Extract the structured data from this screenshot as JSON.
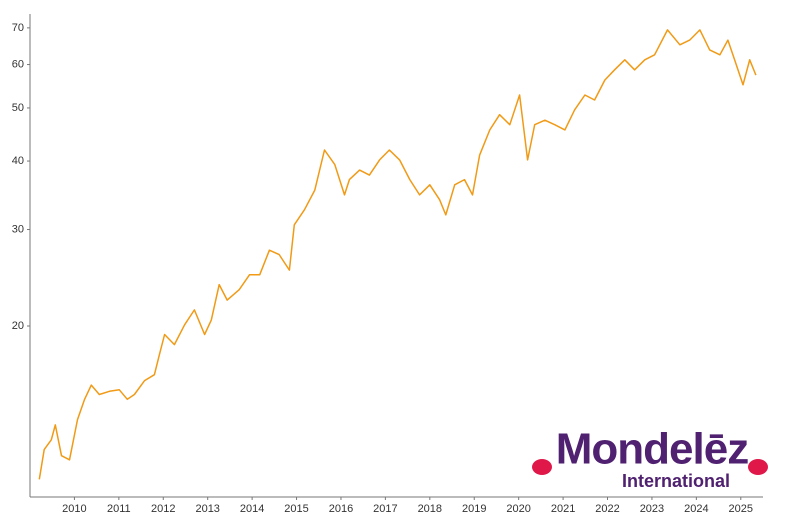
{
  "chart_data": {
    "type": "line",
    "x": [
      2009.21,
      2009.32,
      2009.48,
      2009.57,
      2009.71,
      2009.89,
      2010.07,
      2010.23,
      2010.38,
      2010.56,
      2010.79,
      2011.01,
      2011.19,
      2011.35,
      2011.58,
      2011.8,
      2011.91,
      2012.03,
      2012.25,
      2012.48,
      2012.7,
      2012.93,
      2013.08,
      2013.26,
      2013.44,
      2013.71,
      2013.94,
      2014.17,
      2014.39,
      2014.61,
      2014.84,
      2014.95,
      2015.18,
      2015.41,
      2015.63,
      2015.86,
      2016.08,
      2016.19,
      2016.42,
      2016.64,
      2016.87,
      2017.09,
      2017.32,
      2017.55,
      2017.77,
      2018.0,
      2018.22,
      2018.36,
      2018.56,
      2018.78,
      2018.96,
      2019.12,
      2019.35,
      2019.57,
      2019.8,
      2020.02,
      2020.2,
      2020.36,
      2020.59,
      2020.81,
      2021.04,
      2021.26,
      2021.49,
      2021.71,
      2021.94,
      2022.16,
      2022.39,
      2022.61,
      2022.84,
      2023.06,
      2023.35,
      2023.63,
      2023.85,
      2024.08,
      2024.3,
      2024.53,
      2024.71,
      2024.86,
      2025.05,
      2025.2,
      2025.34
    ],
    "series": [
      {
        "color": "#f09a16",
        "values": [
          10.5,
          11.9,
          12.4,
          13.2,
          11.6,
          11.4,
          13.5,
          14.7,
          15.6,
          15.0,
          15.2,
          15.3,
          14.7,
          15.0,
          15.9,
          16.3,
          17.7,
          19.3,
          18.5,
          20.1,
          21.4,
          19.3,
          20.5,
          23.8,
          22.3,
          23.3,
          24.8,
          24.8,
          27.5,
          27.0,
          25.3,
          30.6,
          32.6,
          35.4,
          41.9,
          39.4,
          34.7,
          37.0,
          38.5,
          37.7,
          40.2,
          41.9,
          40.2,
          37.0,
          34.7,
          36.2,
          34.0,
          31.9,
          36.2,
          37.0,
          34.7,
          41.0,
          45.6,
          48.6,
          46.6,
          52.8,
          40.2,
          46.6,
          47.5,
          46.6,
          45.6,
          49.6,
          52.8,
          51.7,
          56.2,
          58.7,
          61.2,
          58.7,
          61.2,
          62.5,
          69.4,
          65.2,
          66.5,
          69.4,
          63.8,
          62.5,
          66.5,
          61.2,
          55.1,
          61.2,
          57.4
        ]
      }
    ],
    "xlim": [
      2009,
      2025.5
    ],
    "xticks": [
      2010,
      2011,
      2012,
      2013,
      2014,
      2015,
      2016,
      2017,
      2018,
      2019,
      2020,
      2021,
      2022,
      2023,
      2024,
      2025
    ],
    "ylim": [
      9.75,
      74.2
    ],
    "yticks": [
      20,
      30,
      40,
      50,
      60,
      70
    ],
    "log_y": true
  },
  "logo": {
    "name": "Mondelēz",
    "subtitle": "International"
  }
}
